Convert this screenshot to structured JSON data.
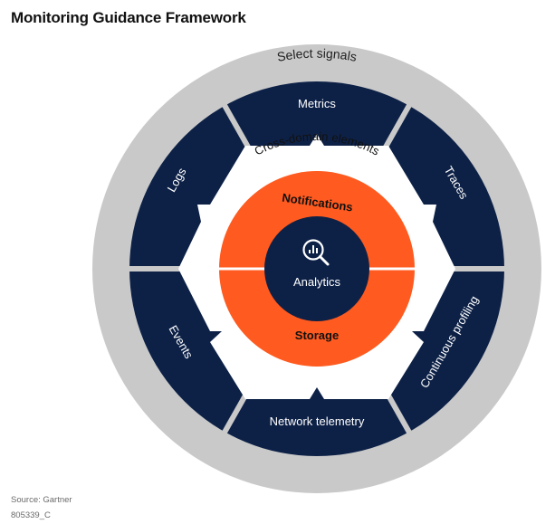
{
  "title": "Monitoring Guidance Framework",
  "outer_ring_label": "Select signals",
  "middle_ring_label": "Cross-domain elements",
  "segments": [
    {
      "label": "Metrics"
    },
    {
      "label": "Traces"
    },
    {
      "label": "Continuous profiling"
    },
    {
      "label": "Network telemetry"
    },
    {
      "label": "Events"
    },
    {
      "label": "Logs"
    }
  ],
  "inner_ring": {
    "top_label": "Notifications",
    "bottom_label": "Storage"
  },
  "center": {
    "label": "Analytics",
    "icon": "magnifier-chart-icon"
  },
  "footer": {
    "source": "Source: Gartner",
    "code": "805339_C"
  },
  "colors": {
    "outer_ring": "#c9c9c9",
    "navy": "#0d2147",
    "orange": "#ff5a1f",
    "white": "#ffffff"
  }
}
